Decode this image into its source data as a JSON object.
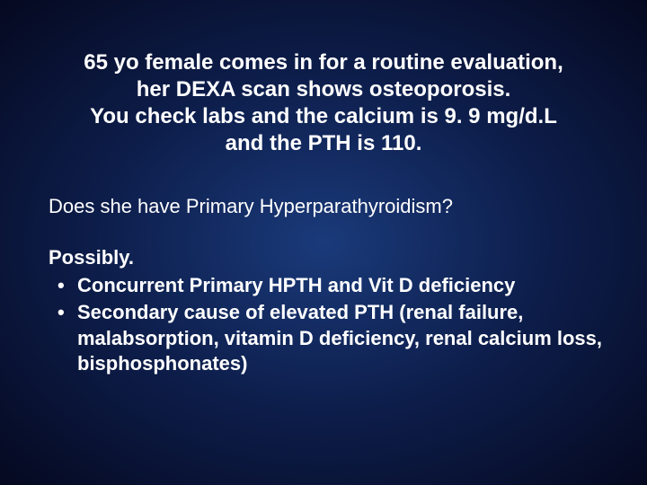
{
  "slide": {
    "background_gradient": {
      "center": "#1a3a7a",
      "mid": "#0d1d4a",
      "outer": "#050920"
    },
    "text_color": "#ffffff",
    "font_family": "Arial",
    "title": {
      "line1": "65 yo female comes in for a routine evaluation,",
      "line2": "her DEXA scan shows osteoporosis.",
      "line3": "You check labs and the calcium is 9. 9 mg/d.L",
      "line4": "and the PTH is 110.",
      "fontsize": 24,
      "fontweight": "bold",
      "align": "center"
    },
    "question": {
      "text": "Does she have Primary Hyperparathyroidism?",
      "fontsize": 22,
      "fontweight": "normal"
    },
    "answer": {
      "lead": "Possibly.",
      "bullets": [
        "Concurrent Primary HPTH and Vit D deficiency",
        "Secondary cause of elevated PTH (renal failure, malabsorption, vitamin D deficiency, renal calcium loss, bisphosphonates)"
      ],
      "fontsize": 22,
      "fontweight": "bold"
    }
  }
}
